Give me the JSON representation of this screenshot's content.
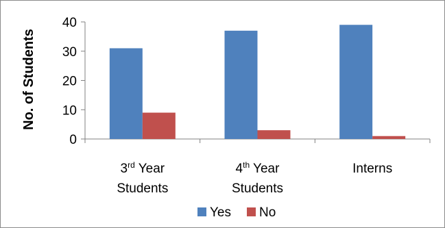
{
  "chart_data": {
    "type": "bar",
    "title": "",
    "xlabel": "",
    "ylabel": "No. of Students",
    "ylim": [
      0,
      40
    ],
    "yticks": [
      0,
      10,
      20,
      30,
      40
    ],
    "grid": false,
    "legend_position": "bottom",
    "categories": [
      {
        "line1_main": "3",
        "line1_sup": "rd",
        "line1_rest": " Year",
        "line2": "Students"
      },
      {
        "line1_main": "4",
        "line1_sup": "th",
        "line1_rest": " Year",
        "line2": "Students"
      },
      {
        "line1_main": "Interns",
        "line1_sup": "",
        "line1_rest": "",
        "line2": ""
      }
    ],
    "series": [
      {
        "name": "Yes",
        "color": "#4f81bd",
        "values": [
          31,
          37,
          39
        ]
      },
      {
        "name": "No",
        "color": "#c0504d",
        "values": [
          9,
          3,
          1
        ]
      }
    ]
  }
}
